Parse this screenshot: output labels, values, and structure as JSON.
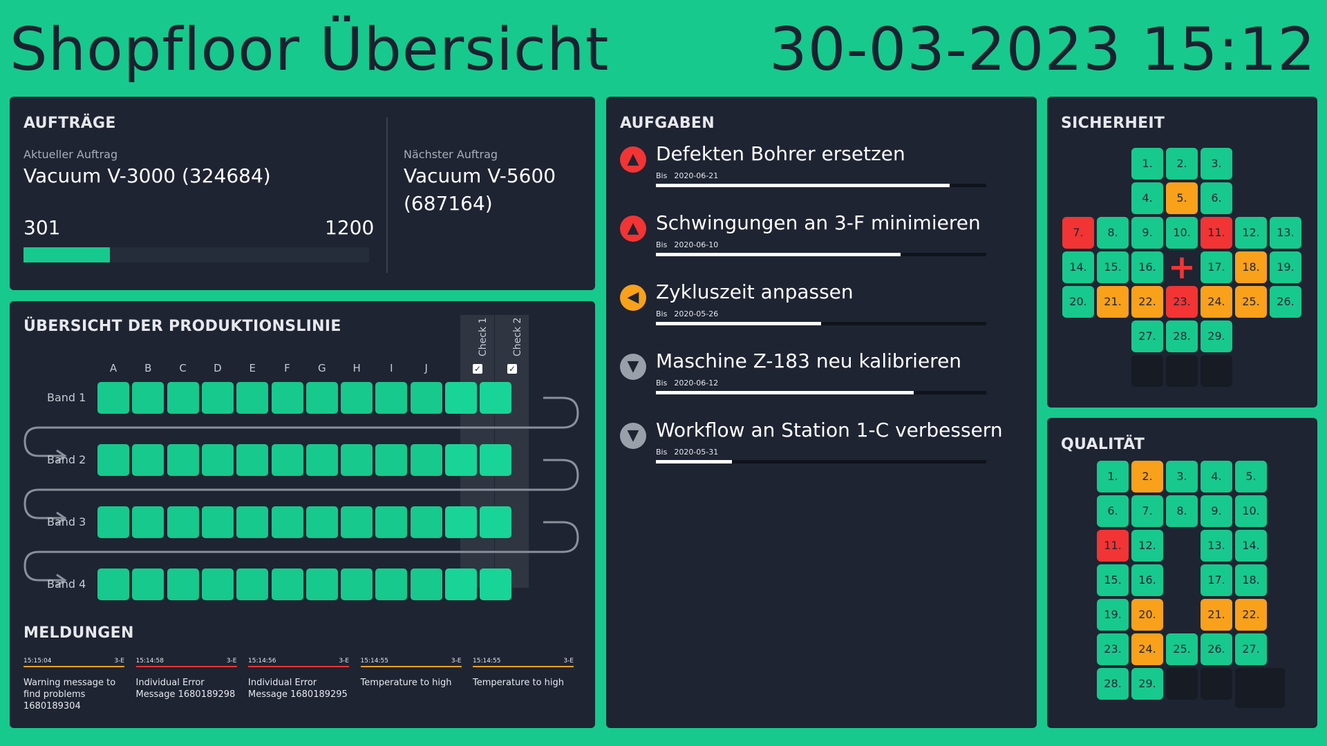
{
  "header": {
    "title": "Shopfloor Übersicht",
    "clock": "30-03-2023 15:12"
  },
  "auftraege": {
    "title": "AUFTRÄGE",
    "current_label": "Aktueller Auftrag",
    "current_value": "Vacuum V-3000 (324684)",
    "progress_done": "301",
    "progress_total": "1200",
    "progress_fraction": 0.25,
    "next_label": "Nächster Auftrag",
    "next_value_line1": "Vacuum V-5600",
    "next_value_line2": "(687164)"
  },
  "linie": {
    "title": "ÜBERSICHT DER PRODUKTIONSLINIE",
    "columns": [
      "A",
      "B",
      "C",
      "D",
      "E",
      "F",
      "G",
      "H",
      "I",
      "J"
    ],
    "checks": [
      "Check 1",
      "Check 2"
    ],
    "bands": [
      "Band 1",
      "Band 2",
      "Band 3",
      "Band 4"
    ]
  },
  "meldungen": {
    "title": "MELDUNGEN",
    "items": [
      {
        "time": "15:15:04",
        "station": "3-E",
        "text": "Warning message to find problems 1680189304",
        "color": "#f9a11b"
      },
      {
        "time": "15:14:58",
        "station": "3-E",
        "text": "Individual Error Message 1680189298",
        "color": "#f23434"
      },
      {
        "time": "15:14:56",
        "station": "3-E",
        "text": "Individual Error Message 1680189295",
        "color": "#f23434"
      },
      {
        "time": "15:14:55",
        "station": "3-E",
        "text": "Temperature to high",
        "color": "#f9a11b"
      },
      {
        "time": "15:14:55",
        "station": "3-E",
        "text": "Temperature to high",
        "color": "#f9a11b"
      }
    ]
  },
  "aufgaben": {
    "title": "AUFGABEN",
    "due_prefix": "Bis",
    "items": [
      {
        "title": "Defekten Bohrer ersetzen",
        "due": "2020-06-21",
        "progress": 0.89,
        "icon": "arrow-up-icon",
        "glyph": "▲",
        "color": "#f23434"
      },
      {
        "title": "Schwingungen an 3-F minimieren",
        "due": "2020-06-10",
        "progress": 0.74,
        "icon": "arrow-up-icon",
        "glyph": "▲",
        "color": "#f23434"
      },
      {
        "title": "Zykluszeit anpassen",
        "due": "2020-05-26",
        "progress": 0.5,
        "icon": "arrow-left-icon",
        "glyph": "◀",
        "color": "#f9a11b"
      },
      {
        "title": "Maschine Z-183 neu kalibrieren",
        "due": "2020-06-12",
        "progress": 0.78,
        "icon": "arrow-down-icon",
        "glyph": "▼",
        "color": "#9aa0aa"
      },
      {
        "title": "Workflow an Station 1-C verbessern",
        "due": "2020-05-31",
        "progress": 0.23,
        "icon": "arrow-down-icon",
        "glyph": "▼",
        "color": "#9aa0aa"
      }
    ]
  },
  "sicherheit": {
    "title": "SICHERHEIT",
    "tiles": [
      {
        "label": "1.",
        "status": "ok"
      },
      {
        "label": "2.",
        "status": "ok"
      },
      {
        "label": "3.",
        "status": "ok"
      },
      {
        "label": "4.",
        "status": "ok"
      },
      {
        "label": "5.",
        "status": "warning"
      },
      {
        "label": "6.",
        "status": "ok"
      },
      {
        "label": "7.",
        "status": "error"
      },
      {
        "label": "8.",
        "status": "ok"
      },
      {
        "label": "9.",
        "status": "ok"
      },
      {
        "label": "10.",
        "status": "ok"
      },
      {
        "label": "11.",
        "status": "error"
      },
      {
        "label": "12.",
        "status": "ok"
      },
      {
        "label": "13.",
        "status": "ok"
      },
      {
        "label": "14.",
        "status": "ok"
      },
      {
        "label": "15.",
        "status": "ok"
      },
      {
        "label": "16.",
        "status": "ok"
      },
      {
        "label": "17.",
        "status": "ok"
      },
      {
        "label": "18.",
        "status": "warning"
      },
      {
        "label": "19.",
        "status": "ok"
      },
      {
        "label": "20.",
        "status": "ok"
      },
      {
        "label": "21.",
        "status": "warning"
      },
      {
        "label": "22.",
        "status": "warning"
      },
      {
        "label": "23.",
        "status": "error"
      },
      {
        "label": "24.",
        "status": "warning"
      },
      {
        "label": "25.",
        "status": "warning"
      },
      {
        "label": "26.",
        "status": "ok"
      },
      {
        "label": "27.",
        "status": "ok"
      },
      {
        "label": "28.",
        "status": "ok"
      },
      {
        "label": "29.",
        "status": "ok"
      },
      {
        "label": "",
        "status": "empty"
      },
      {
        "label": "",
        "status": "empty"
      },
      {
        "label": "",
        "status": "empty"
      }
    ]
  },
  "qualitaet": {
    "title": "QUALITÄT",
    "tiles": [
      {
        "label": "1.",
        "status": "ok"
      },
      {
        "label": "2.",
        "status": "warning"
      },
      {
        "label": "3.",
        "status": "ok"
      },
      {
        "label": "4.",
        "status": "ok"
      },
      {
        "label": "5.",
        "status": "ok"
      },
      {
        "label": "6.",
        "status": "ok"
      },
      {
        "label": "7.",
        "status": "ok"
      },
      {
        "label": "8.",
        "status": "ok"
      },
      {
        "label": "9.",
        "status": "ok"
      },
      {
        "label": "10.",
        "status": "ok"
      },
      {
        "label": "11.",
        "status": "error"
      },
      {
        "label": "12.",
        "status": "ok"
      },
      {
        "label": "13.",
        "status": "ok"
      },
      {
        "label": "14.",
        "status": "ok"
      },
      {
        "label": "15.",
        "status": "ok"
      },
      {
        "label": "16.",
        "status": "ok"
      },
      {
        "label": "17.",
        "status": "ok"
      },
      {
        "label": "18.",
        "status": "ok"
      },
      {
        "label": "19.",
        "status": "ok"
      },
      {
        "label": "20.",
        "status": "warning"
      },
      {
        "label": "21.",
        "status": "warning"
      },
      {
        "label": "22.",
        "status": "warning"
      },
      {
        "label": "23.",
        "status": "ok"
      },
      {
        "label": "24.",
        "status": "warning"
      },
      {
        "label": "25.",
        "status": "ok"
      },
      {
        "label": "26.",
        "status": "ok"
      },
      {
        "label": "27.",
        "status": "ok"
      },
      {
        "label": "28.",
        "status": "ok"
      },
      {
        "label": "29.",
        "status": "ok"
      },
      {
        "label": "",
        "status": "empty"
      },
      {
        "label": "",
        "status": "empty"
      },
      {
        "label": "",
        "status": "empty"
      }
    ]
  },
  "colors": {
    "accent": "#17c98c",
    "warning": "#f9a11b",
    "error": "#f23434",
    "panel": "#1e2432"
  }
}
